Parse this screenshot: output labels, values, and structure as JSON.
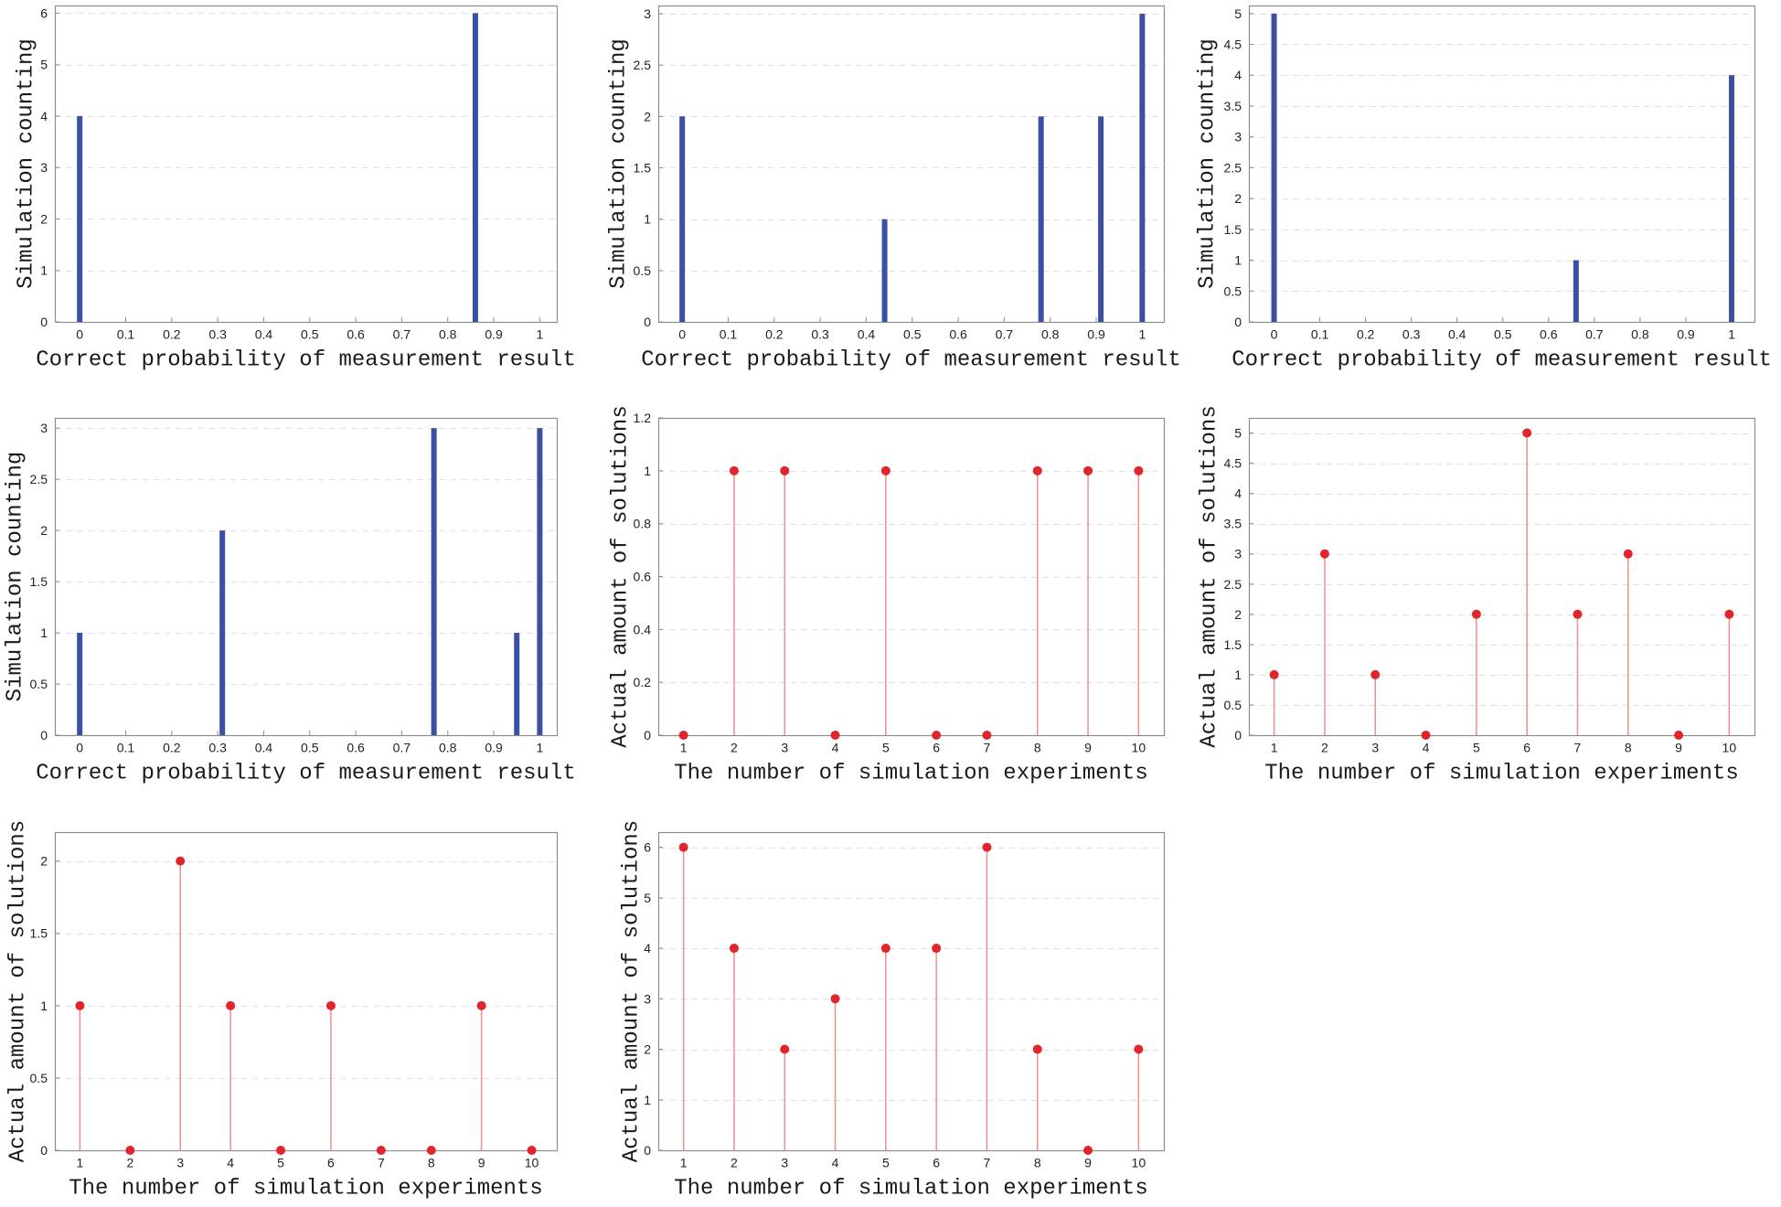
{
  "colors": {
    "bar": "#3b4fa3",
    "stem_line": "#f08f8c",
    "stem_marker": "#e2252b",
    "grid": "#e0e0e0",
    "axis": "#8c8c8c",
    "text": "#1a1a1a"
  },
  "chart_data": [
    {
      "type": "bar",
      "x": [
        0,
        0.86
      ],
      "values": [
        4,
        6
      ],
      "xlabel": "Correct probability of measurement result",
      "ylabel": "Simulation counting",
      "xlim": [
        -0.054,
        1.037
      ],
      "ylim": [
        0,
        6.15
      ],
      "xticks": [
        0,
        0.1,
        0.2,
        0.3,
        0.4,
        0.5,
        0.6,
        0.7,
        0.8,
        0.9,
        1
      ],
      "yticks": [
        0,
        1,
        2,
        3,
        4,
        5,
        6
      ],
      "grid": "horizontal dashed",
      "legend": "none"
    },
    {
      "type": "bar",
      "x": [
        0,
        0.44,
        0.78,
        0.91,
        1
      ],
      "values": [
        2,
        1,
        2,
        2,
        3
      ],
      "xlabel": "Correct probability of measurement result",
      "ylabel": "Simulation counting",
      "xlim": [
        -0.052,
        1.047
      ],
      "ylim": [
        0,
        3.08
      ],
      "xticks": [
        0,
        0.1,
        0.2,
        0.3,
        0.4,
        0.5,
        0.6,
        0.7,
        0.8,
        0.9,
        1
      ],
      "yticks": [
        0,
        0.5,
        1,
        1.5,
        2,
        2.5,
        3
      ],
      "grid": "horizontal dashed",
      "legend": "none"
    },
    {
      "type": "bar",
      "x": [
        0,
        0.66,
        1
      ],
      "values": [
        5,
        1,
        4
      ],
      "xlabel": "Correct probability of measurement result",
      "ylabel": "Simulation counting",
      "xlim": [
        -0.055,
        1.05
      ],
      "ylim": [
        0,
        5.13
      ],
      "xticks": [
        0,
        0.1,
        0.2,
        0.3,
        0.4,
        0.5,
        0.6,
        0.7,
        0.8,
        0.9,
        1
      ],
      "yticks": [
        0,
        0.5,
        1,
        1.5,
        2,
        2.5,
        3,
        3.5,
        4,
        4.5,
        5
      ],
      "grid": "horizontal dashed",
      "legend": "none"
    },
    {
      "type": "bar",
      "x": [
        0,
        0.31,
        0.77,
        0.95,
        1
      ],
      "values": [
        1,
        2,
        3,
        1,
        3
      ],
      "xlabel": "Correct probability of measurement result",
      "ylabel": "Simulation counting",
      "xlim": [
        -0.054,
        1.037
      ],
      "ylim": [
        0,
        3.1
      ],
      "xticks": [
        0,
        0.1,
        0.2,
        0.3,
        0.4,
        0.5,
        0.6,
        0.7,
        0.8,
        0.9,
        1
      ],
      "yticks": [
        0,
        0.5,
        1,
        1.5,
        2,
        2.5,
        3
      ],
      "grid": "horizontal dashed",
      "legend": "none"
    },
    {
      "type": "scatter",
      "variant": "stem",
      "x": [
        1,
        2,
        3,
        4,
        5,
        6,
        7,
        8,
        9,
        10
      ],
      "values": [
        0,
        1,
        1,
        0,
        1,
        0,
        0,
        1,
        1,
        1
      ],
      "xlabel": "The number of simulation experiments",
      "ylabel": "Actual amount of solutions",
      "xlim": [
        0.5,
        10.5
      ],
      "ylim": [
        0,
        1.2
      ],
      "xticks": [
        1,
        2,
        3,
        4,
        5,
        6,
        7,
        8,
        9,
        10
      ],
      "yticks": [
        0,
        0.2,
        0.4,
        0.6,
        0.8,
        1,
        1.2
      ],
      "grid": "horizontal dashed",
      "legend": "none"
    },
    {
      "type": "scatter",
      "variant": "stem",
      "x": [
        1,
        2,
        3,
        4,
        5,
        6,
        7,
        8,
        9,
        10
      ],
      "values": [
        1,
        3,
        1,
        0,
        2,
        5,
        2,
        3,
        0,
        2
      ],
      "xlabel": "The number of simulation experiments",
      "ylabel": "Actual amount of solutions",
      "xlim": [
        0.5,
        10.5
      ],
      "ylim": [
        0,
        5.25
      ],
      "xticks": [
        1,
        2,
        3,
        4,
        5,
        6,
        7,
        8,
        9,
        10
      ],
      "yticks": [
        0,
        0.5,
        1,
        1.5,
        2,
        2.5,
        3,
        3.5,
        4,
        4.5,
        5
      ],
      "grid": "horizontal dashed",
      "legend": "none"
    },
    {
      "type": "scatter",
      "variant": "stem",
      "x": [
        1,
        2,
        3,
        4,
        5,
        6,
        7,
        8,
        9,
        10
      ],
      "values": [
        1,
        0,
        2,
        1,
        0,
        1,
        0,
        0,
        1,
        0
      ],
      "xlabel": "The number of simulation experiments",
      "ylabel": "Actual amount of solutions",
      "xlim": [
        0.5,
        10.5
      ],
      "ylim": [
        0,
        2.2
      ],
      "xticks": [
        1,
        2,
        3,
        4,
        5,
        6,
        7,
        8,
        9,
        10
      ],
      "yticks": [
        0,
        0.5,
        1,
        1.5,
        2
      ],
      "grid": "horizontal dashed",
      "legend": "none"
    },
    {
      "type": "scatter",
      "variant": "stem",
      "x": [
        1,
        2,
        3,
        4,
        5,
        6,
        7,
        8,
        9,
        10
      ],
      "values": [
        6,
        4,
        2,
        3,
        4,
        4,
        6,
        2,
        0,
        2
      ],
      "xlabel": "The number of simulation experiments",
      "ylabel": "Actual amount of solutions",
      "xlim": [
        0.5,
        10.5
      ],
      "ylim": [
        0,
        6.3
      ],
      "xticks": [
        1,
        2,
        3,
        4,
        5,
        6,
        7,
        8,
        9,
        10
      ],
      "yticks": [
        0,
        1,
        2,
        3,
        4,
        5,
        6
      ],
      "grid": "horizontal dashed",
      "legend": "none"
    }
  ]
}
